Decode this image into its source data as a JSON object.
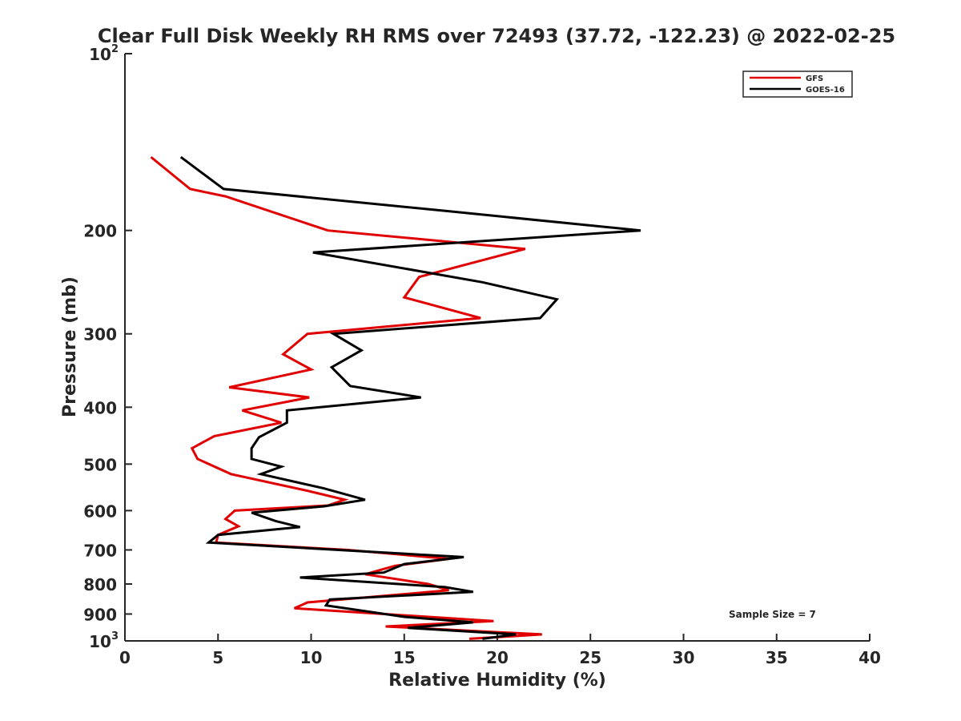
{
  "chart_data": {
    "type": "line",
    "title": "Clear Full Disk Weekly RH RMS over 72493 (37.72, -122.23) @ 2022-02-25",
    "xlabel": "Relative Humidity (%)",
    "ylabel": "Pressure (mb)",
    "xlim": [
      0,
      40
    ],
    "ylim": [
      100,
      1000
    ],
    "y_scale": "log",
    "y_reversed": true,
    "x_ticks": [
      "0",
      "5",
      "10",
      "15",
      "20",
      "25",
      "30",
      "35",
      "40"
    ],
    "y_ticks": [
      {
        "value": 100,
        "label": "10",
        "exp": "2"
      },
      {
        "value": 200,
        "label": "200"
      },
      {
        "value": 300,
        "label": "300"
      },
      {
        "value": 400,
        "label": "400"
      },
      {
        "value": 500,
        "label": "500"
      },
      {
        "value": 600,
        "label": "600"
      },
      {
        "value": 700,
        "label": "700"
      },
      {
        "value": 800,
        "label": "800"
      },
      {
        "value": 900,
        "label": "900"
      },
      {
        "value": 1000,
        "label": "10",
        "exp": "3"
      }
    ],
    "grid": false,
    "legend_position": "top-right",
    "annotation": "Sample Size = 7",
    "series": [
      {
        "name": "GFS",
        "color": "#e00000",
        "points": [
          [
            1.4,
            150
          ],
          [
            3.5,
            170
          ],
          [
            5.4,
            175
          ],
          [
            10.9,
            200
          ],
          [
            21.5,
            215
          ],
          [
            15.8,
            240
          ],
          [
            15.0,
            260
          ],
          [
            19.1,
            282
          ],
          [
            9.8,
            300
          ],
          [
            8.5,
            325
          ],
          [
            10.0,
            345
          ],
          [
            5.6,
            370
          ],
          [
            9.9,
            385
          ],
          [
            6.3,
            405
          ],
          [
            8.4,
            425
          ],
          [
            4.8,
            448
          ],
          [
            3.6,
            470
          ],
          [
            3.9,
            490
          ],
          [
            5.7,
            520
          ],
          [
            9.8,
            555
          ],
          [
            11.8,
            575
          ],
          [
            10.9,
            588
          ],
          [
            5.9,
            600
          ],
          [
            5.4,
            620
          ],
          [
            6.1,
            638
          ],
          [
            5.0,
            660
          ],
          [
            4.9,
            680
          ],
          [
            12.0,
            700
          ],
          [
            17.4,
            725
          ],
          [
            14.5,
            745
          ],
          [
            12.9,
            770
          ],
          [
            16.3,
            800
          ],
          [
            17.4,
            820
          ],
          [
            9.8,
            860
          ],
          [
            9.1,
            880
          ],
          [
            19.8,
            925
          ],
          [
            14.0,
            945
          ],
          [
            22.4,
            975
          ],
          [
            18.5,
            992
          ]
        ]
      },
      {
        "name": "GOES-16",
        "color": "#000000",
        "points": [
          [
            3.0,
            150
          ],
          [
            5.3,
            170
          ],
          [
            17.0,
            185
          ],
          [
            27.7,
            200
          ],
          [
            10.1,
            218
          ],
          [
            19.2,
            245
          ],
          [
            23.2,
            262
          ],
          [
            22.3,
            282
          ],
          [
            11.2,
            300
          ],
          [
            12.7,
            320
          ],
          [
            11.1,
            342
          ],
          [
            12.1,
            368
          ],
          [
            15.9,
            385
          ],
          [
            8.7,
            405
          ],
          [
            8.7,
            425
          ],
          [
            7.2,
            450
          ],
          [
            6.8,
            470
          ],
          [
            6.8,
            490
          ],
          [
            8.4,
            505
          ],
          [
            7.3,
            520
          ],
          [
            10.7,
            550
          ],
          [
            12.9,
            575
          ],
          [
            10.7,
            590
          ],
          [
            6.8,
            605
          ],
          [
            8.1,
            625
          ],
          [
            9.4,
            640
          ],
          [
            5.0,
            660
          ],
          [
            4.5,
            680
          ],
          [
            18.2,
            720
          ],
          [
            15.0,
            740
          ],
          [
            13.9,
            765
          ],
          [
            9.4,
            780
          ],
          [
            17.2,
            810
          ],
          [
            18.7,
            825
          ],
          [
            11.0,
            850
          ],
          [
            10.8,
            870
          ],
          [
            15.0,
            910
          ],
          [
            18.7,
            930
          ],
          [
            15.2,
            950
          ],
          [
            21.0,
            975
          ],
          [
            19.2,
            992
          ]
        ]
      }
    ]
  }
}
